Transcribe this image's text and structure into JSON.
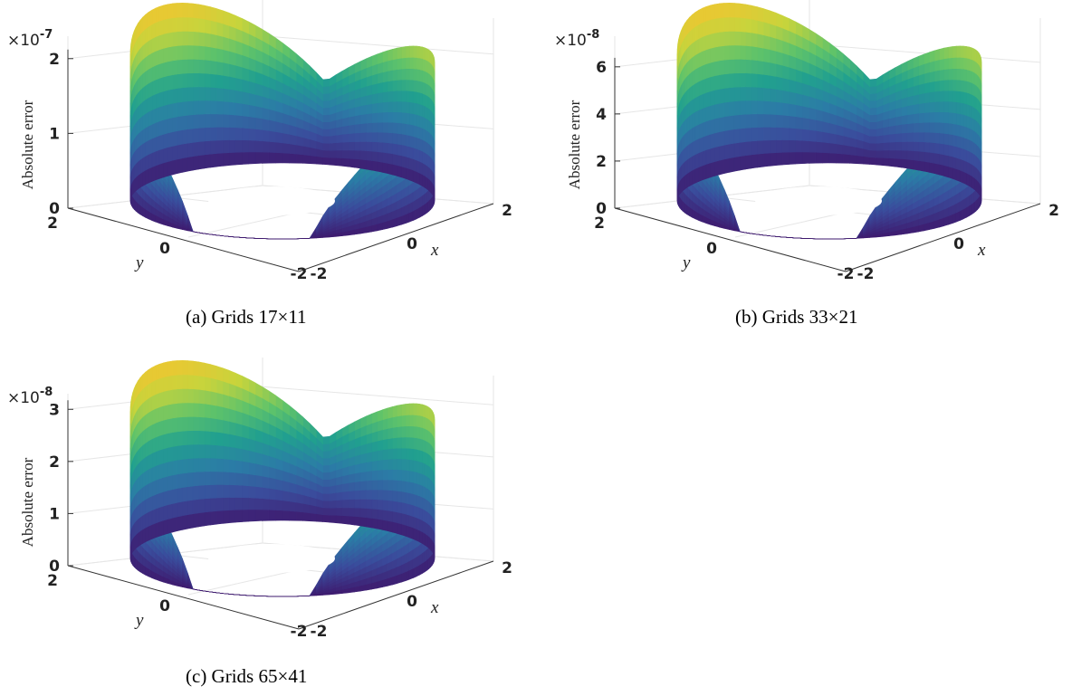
{
  "chart_data": [
    {
      "type": "surface",
      "caption": "(a) Grids 17×11",
      "zlabel": "Absolute error",
      "xlabel": "x",
      "ylabel": "y",
      "multiplier_base": "×10",
      "multiplier_exp": "-7",
      "z_ticks": [
        "0",
        "1",
        "2"
      ],
      "x_ticks": [
        "-2",
        "0",
        "2"
      ],
      "y_ticks": [
        "-2",
        "0",
        "2"
      ],
      "zmax": 2.3,
      "colormap": [
        "#3e1a6e",
        "#3a4c9c",
        "#2b7ca6",
        "#21a08f",
        "#5fc36a",
        "#c7d43c",
        "#f2c530"
      ]
    },
    {
      "type": "surface",
      "caption": "(b) Grids 33×21",
      "zlabel": "Absolute error",
      "xlabel": "x",
      "ylabel": "y",
      "multiplier_base": "×10",
      "multiplier_exp": "-8",
      "z_ticks": [
        "0",
        "2",
        "4",
        "6"
      ],
      "x_ticks": [
        "-2",
        "0",
        "2"
      ],
      "y_ticks": [
        "-2",
        "0",
        "2"
      ],
      "zmax": 7.3,
      "colormap": [
        "#3e1a6e",
        "#3a4c9c",
        "#2b7ca6",
        "#21a08f",
        "#5fc36a",
        "#c7d43c",
        "#f2c530"
      ]
    },
    {
      "type": "surface",
      "caption": "(c) Grids 65×41",
      "zlabel": "Absolute error",
      "xlabel": "x",
      "ylabel": "y",
      "multiplier_base": "×10",
      "multiplier_exp": "-8",
      "z_ticks": [
        "0",
        "1",
        "2",
        "3"
      ],
      "x_ticks": [
        "-2",
        "0",
        "2"
      ],
      "y_ticks": [
        "-2",
        "0",
        "2"
      ],
      "zmax": 3.3,
      "colormap": [
        "#3e1a6e",
        "#3a4c9c",
        "#2b7ca6",
        "#21a08f",
        "#5fc36a",
        "#c7d43c",
        "#f2c530"
      ]
    }
  ]
}
